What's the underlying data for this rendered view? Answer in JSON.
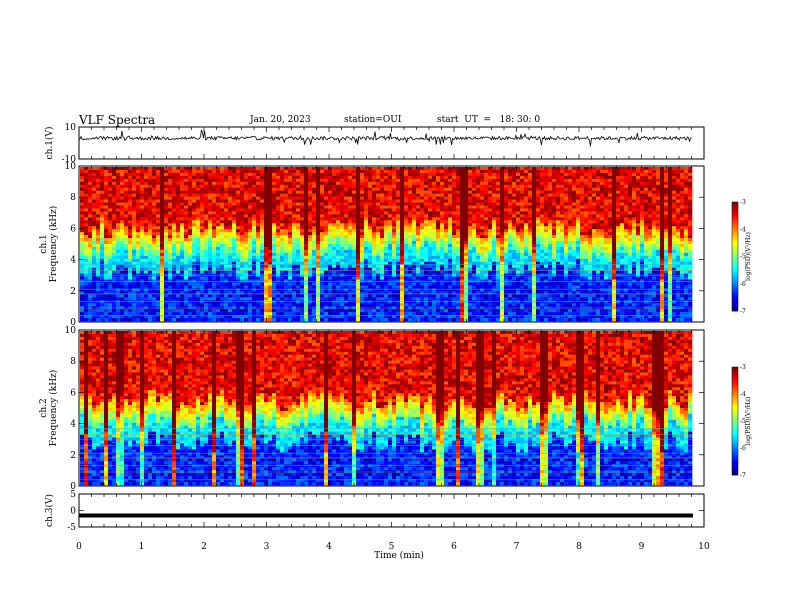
{
  "header": {
    "title": "VLF Spectra",
    "date": "Jan. 20, 2023",
    "station": "station=OUI",
    "start": "start  UT  =   18: 30: 0"
  },
  "colors": {
    "spec_low": "#0000aa",
    "spec_high": "#ff0000"
  },
  "chart_data": [
    {
      "type": "line",
      "ylabel": "ch.1(V)",
      "ylim": [
        -10,
        10
      ],
      "yticks": [
        "10",
        "-10"
      ],
      "xlim": [
        0,
        10
      ],
      "baseline": 3
    },
    {
      "type": "heatmap",
      "ylabel": "ch.1\nFrequency (kHz)",
      "ylim": [
        0,
        10
      ],
      "yticks": [
        "0",
        "2",
        "4",
        "6",
        "8",
        "10"
      ],
      "xlim": [
        0,
        10
      ],
      "colorbar": {
        "label": "log(PSD)(V²/Hz)",
        "ticks": [
          "-3",
          "-4",
          "-5",
          "-6",
          "-7"
        ],
        "range": [
          -7,
          -3
        ]
      }
    },
    {
      "type": "heatmap",
      "ylabel": "ch.2\nFrequency (kHz)",
      "ylim": [
        0,
        10
      ],
      "yticks": [
        "0",
        "2",
        "4",
        "6",
        "8",
        "10"
      ],
      "xlim": [
        0,
        10
      ],
      "colorbar": {
        "label": "log(PSD)(V²/Hz)",
        "ticks": [
          "-3",
          "-4",
          "-5",
          "-6",
          "-7"
        ],
        "range": [
          -7,
          -3
        ]
      }
    },
    {
      "type": "line",
      "ylabel": "ch.3(V)",
      "ylim": [
        -5,
        5
      ],
      "yticks": [
        "5",
        "0",
        "-5"
      ],
      "xlim": [
        0,
        10
      ],
      "value": -1.5
    }
  ],
  "x_axis": {
    "label": "Time (min)",
    "ticks": [
      "0",
      "1",
      "2",
      "3",
      "4",
      "5",
      "6",
      "7",
      "8",
      "9",
      "10"
    ]
  }
}
